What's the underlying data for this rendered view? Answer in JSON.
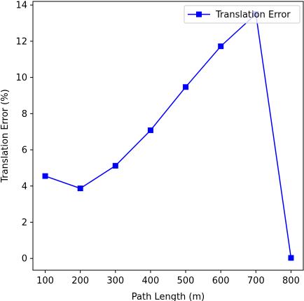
{
  "chart_data": {
    "type": "line",
    "x": [
      100,
      200,
      300,
      400,
      500,
      600,
      700,
      800
    ],
    "series": [
      {
        "name": "Translation Error",
        "values": [
          4.55,
          3.87,
          5.12,
          7.08,
          9.47,
          11.72,
          13.5,
          0.03
        ],
        "color": "#0000ff",
        "marker": "square"
      }
    ],
    "xlabel": "Path Length (m)",
    "ylabel": "Translation Error (%)",
    "xticks": [
      100,
      200,
      300,
      400,
      500,
      600,
      700,
      800
    ],
    "yticks": [
      0,
      2,
      4,
      6,
      8,
      10,
      12,
      14
    ],
    "xlim": [
      65,
      835
    ],
    "ylim": [
      -0.65,
      14.2
    ],
    "grid": false,
    "legend_position": "top-right"
  }
}
